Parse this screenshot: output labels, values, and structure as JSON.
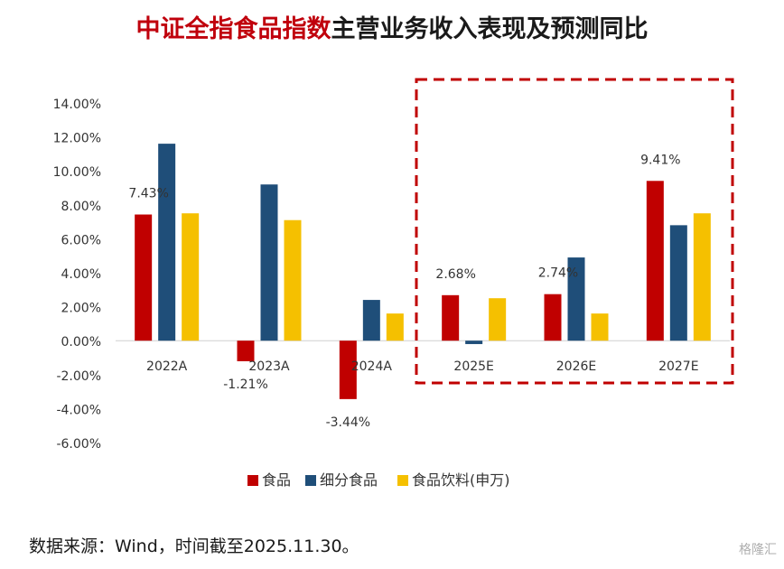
{
  "title": {
    "accent": "中证全指食品指数",
    "rest": "主营业务收入表现及预测同比"
  },
  "source": "数据来源：Wind，时间截至2025.11.30。",
  "watermark": "格隆汇",
  "colors": {
    "food": "#c00000",
    "sub_food": "#1f4e79",
    "food_bev": "#f5c000",
    "highlight_box": "#c00000"
  },
  "chart_data": {
    "type": "bar",
    "categories": [
      "2022A",
      "2023A",
      "2024A",
      "2025E",
      "2026E",
      "2027E"
    ],
    "series": [
      {
        "name": "食品",
        "values": [
          7.43,
          -1.21,
          -3.44,
          2.68,
          2.74,
          9.41
        ]
      },
      {
        "name": "细分食品",
        "values": [
          11.6,
          9.2,
          2.4,
          -0.2,
          4.9,
          6.8
        ]
      },
      {
        "name": "食品饮料(申万)",
        "values": [
          7.5,
          7.1,
          1.6,
          2.5,
          1.6,
          7.5
        ]
      }
    ],
    "data_labels": {
      "series": 0,
      "labels": [
        "7.43%",
        "-1.21%",
        "-3.44%",
        "2.68%",
        "2.74%",
        "9.41%"
      ]
    },
    "yticks": [
      "-6.00%",
      "-4.00%",
      "-2.00%",
      "0.00%",
      "2.00%",
      "4.00%",
      "6.00%",
      "8.00%",
      "10.00%",
      "12.00%",
      "14.00%"
    ],
    "ylim": [
      -6,
      14
    ],
    "grid": false,
    "legend": "bottom",
    "highlight": {
      "from_category": "2025E",
      "to_category": "2027E",
      "style": "dashed"
    }
  }
}
